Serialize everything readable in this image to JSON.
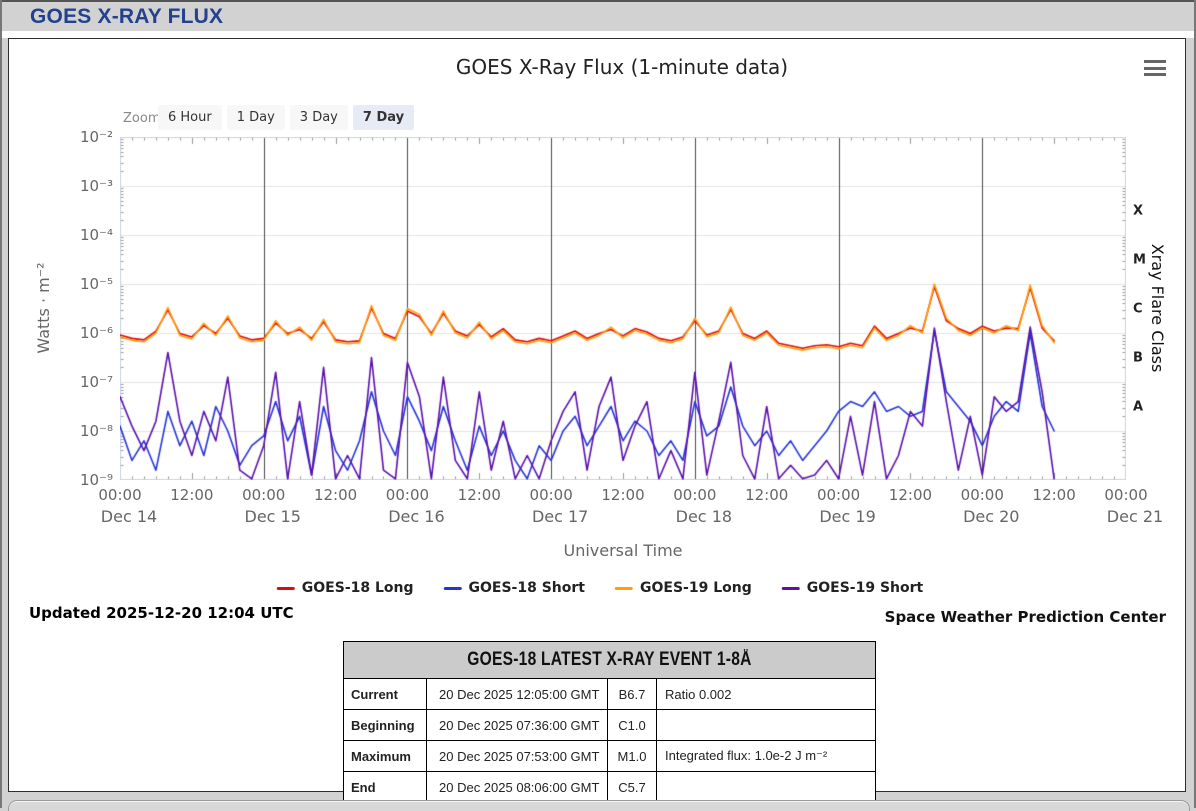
{
  "page": {
    "header_title": "GOES X-RAY FLUX"
  },
  "chart": {
    "zoom_label": "Zoom",
    "zoom_buttons": [
      {
        "label": "6 Hour",
        "selected": false
      },
      {
        "label": "1 Day",
        "selected": false
      },
      {
        "label": "3 Day",
        "selected": false
      },
      {
        "label": "7 Day",
        "selected": true
      }
    ],
    "menu_icon": "hamburger-icon"
  },
  "chart_data": {
    "type": "line",
    "title": "GOES X-Ray Flux (1-minute data)",
    "xlabel": "Universal Time",
    "ylabel": "Watts · m⁻²",
    "y2label": "Xray Flare Class",
    "yscale": "log",
    "ylim_log10": [
      -9,
      -2
    ],
    "y_tick_labels": [
      "10⁻²",
      "10⁻³",
      "10⁻⁴",
      "10⁻⁵",
      "10⁻⁶",
      "10⁻⁷",
      "10⁻⁸",
      "10⁻⁹"
    ],
    "x_days": [
      "Dec 14",
      "Dec 15",
      "Dec 16",
      "Dec 17",
      "Dec 18",
      "Dec 19",
      "Dec 20",
      "Dec 21"
    ],
    "x_time_major": "00:00",
    "x_time_minor": "12:00",
    "flare_classes": [
      "A",
      "B",
      "C",
      "M",
      "X"
    ],
    "flare_class_band_mid_log10": [
      -7.5,
      -6.5,
      -5.5,
      -4.5,
      -3.5
    ],
    "grid": {
      "h_gridlines": "decades",
      "day_boundary_lines": true
    },
    "colors": {
      "day_line": "#4a4a4a",
      "gridline": "#e4e4e4",
      "plot_border": "#ccd6eb",
      "tick": "#999999"
    },
    "x_start": "Dec 14 00:00 UTC",
    "x_step_hours": 2,
    "series": [
      {
        "name": "GOES-18 Long",
        "color": "#dd0b0b",
        "log10_values": [
          -6.04,
          -6.11,
          -6.14,
          -5.96,
          -5.53,
          -6.01,
          -6.08,
          -5.85,
          -6.01,
          -5.7,
          -6.06,
          -6.14,
          -6.11,
          -5.8,
          -6.01,
          -5.93,
          -6.11,
          -5.77,
          -6.14,
          -6.18,
          -6.16,
          -5.49,
          -6.01,
          -6.11,
          -5.55,
          -5.67,
          -6.01,
          -5.6,
          -5.96,
          -6.06,
          -5.83,
          -6.08,
          -5.91,
          -6.14,
          -6.18,
          -6.11,
          -6.16,
          -6.06,
          -5.96,
          -6.11,
          -6.01,
          -5.93,
          -6.06,
          -5.91,
          -5.98,
          -6.11,
          -6.16,
          -6.08,
          -5.75,
          -6.04,
          -5.96,
          -5.52,
          -6.01,
          -6.11,
          -5.96,
          -6.21,
          -6.26,
          -6.31,
          -6.26,
          -6.24,
          -6.28,
          -6.21,
          -6.26,
          -5.86,
          -6.11,
          -6.01,
          -5.9,
          -5.96,
          -5.05,
          -5.75,
          -5.91,
          -6.01,
          -5.86,
          -5.96,
          -5.9,
          -5.91,
          -5.07,
          -5.9,
          -6.16
        ]
      },
      {
        "name": "GOES-18 Short",
        "color": "#2535d8",
        "log10_values": [
          -7.9,
          -8.6,
          -8.2,
          -8.8,
          -7.6,
          -8.3,
          -7.8,
          -8.5,
          -7.5,
          -8.0,
          -8.7,
          -8.3,
          -8.1,
          -7.4,
          -8.2,
          -7.7,
          -8.9,
          -7.5,
          -8.4,
          -8.8,
          -8.2,
          -7.2,
          -8.0,
          -8.5,
          -7.3,
          -7.8,
          -8.4,
          -7.5,
          -8.2,
          -8.8,
          -7.9,
          -8.5,
          -8.0,
          -8.6,
          -9.0,
          -8.3,
          -8.6,
          -8.0,
          -7.7,
          -8.3,
          -7.9,
          -7.5,
          -8.2,
          -7.8,
          -8.0,
          -8.5,
          -8.2,
          -8.6,
          -7.4,
          -8.1,
          -7.9,
          -7.1,
          -7.9,
          -8.3,
          -8.0,
          -8.5,
          -8.2,
          -8.6,
          -8.3,
          -8.0,
          -7.6,
          -7.4,
          -7.5,
          -7.2,
          -7.6,
          -7.5,
          -7.7,
          -7.6,
          -5.95,
          -7.2,
          -7.5,
          -7.8,
          -8.3,
          -7.7,
          -7.4,
          -7.6,
          -6.0,
          -7.5,
          -8.0
        ]
      },
      {
        "name": "GOES-19 Long",
        "color": "#ff9e0a",
        "log10_values": [
          -6.08,
          -6.15,
          -6.18,
          -6.0,
          -5.48,
          -6.05,
          -6.12,
          -5.8,
          -6.05,
          -5.65,
          -6.1,
          -6.18,
          -6.15,
          -5.75,
          -6.05,
          -5.88,
          -6.15,
          -5.72,
          -6.18,
          -6.22,
          -6.2,
          -5.44,
          -6.05,
          -6.15,
          -5.5,
          -5.62,
          -6.05,
          -5.55,
          -6.0,
          -6.1,
          -5.78,
          -6.12,
          -5.95,
          -6.18,
          -6.22,
          -6.15,
          -6.2,
          -6.1,
          -6.0,
          -6.15,
          -6.05,
          -5.88,
          -6.1,
          -5.95,
          -6.02,
          -6.15,
          -6.2,
          -6.12,
          -5.7,
          -6.08,
          -6.0,
          -5.47,
          -6.05,
          -6.15,
          -6.0,
          -6.25,
          -6.3,
          -6.35,
          -6.3,
          -6.28,
          -6.32,
          -6.25,
          -6.3,
          -5.9,
          -6.15,
          -6.05,
          -5.85,
          -6.0,
          -5.0,
          -5.7,
          -5.95,
          -6.05,
          -5.9,
          -6.0,
          -5.85,
          -5.95,
          -5.02,
          -5.85,
          -6.2
        ]
      },
      {
        "name": "GOES-19 Short",
        "color": "#5a11ad",
        "log10_values": [
          -7.3,
          -7.9,
          -8.4,
          -7.8,
          -6.4,
          -7.8,
          -8.5,
          -7.6,
          -8.2,
          -6.9,
          -8.8,
          -9.0,
          -8.3,
          -6.8,
          -9.0,
          -7.4,
          -8.9,
          -6.7,
          -9.0,
          -8.5,
          -9.0,
          -6.5,
          -8.8,
          -9.0,
          -6.6,
          -7.3,
          -9.0,
          -6.9,
          -8.6,
          -9.0,
          -7.2,
          -8.8,
          -7.8,
          -9.0,
          -8.5,
          -9.0,
          -8.2,
          -7.6,
          -7.2,
          -8.8,
          -7.5,
          -6.9,
          -8.6,
          -7.9,
          -7.4,
          -9.0,
          -8.4,
          -9.0,
          -6.8,
          -8.9,
          -7.8,
          -6.6,
          -8.5,
          -9.0,
          -7.5,
          -9.0,
          -8.7,
          -9.0,
          -8.9,
          -8.6,
          -9.0,
          -7.7,
          -8.9,
          -7.4,
          -9.0,
          -8.5,
          -7.6,
          -7.9,
          -5.9,
          -7.4,
          -8.8,
          -7.7,
          -8.9,
          -7.3,
          -7.6,
          -7.4,
          -5.88,
          -7.2,
          -9.0
        ]
      }
    ],
    "draw_order": [
      1,
      3,
      0,
      2
    ],
    "legend_position": "bottom-center"
  },
  "legend": {
    "items": [
      {
        "label": "GOES-18 Long",
        "color": "#dd0b0b"
      },
      {
        "label": "GOES-18 Short",
        "color": "#2535d8"
      },
      {
        "label": "GOES-19 Long",
        "color": "#ff9e0a"
      },
      {
        "label": "GOES-19 Short",
        "color": "#5a11ad"
      }
    ]
  },
  "footer": {
    "updated": "Updated 2025-12-20 12:04 UTC",
    "credit": "Space Weather Prediction Center"
  },
  "event_table": {
    "title": "GOES-18 LATEST X-RAY EVENT 1-8Å",
    "rows": [
      {
        "label": "Current",
        "time": "20 Dec 2025 12:05:00 GMT",
        "cls": "B6.7",
        "note": "Ratio 0.002"
      },
      {
        "label": "Beginning",
        "time": "20 Dec 2025 07:36:00 GMT",
        "cls": "C1.0",
        "note": ""
      },
      {
        "label": "Maximum",
        "time": "20 Dec 2025 07:53:00 GMT",
        "cls": "M1.0",
        "note": "Integrated flux: 1.0e-2 J m⁻²"
      },
      {
        "label": "End",
        "time": "20 Dec 2025 08:06:00 GMT",
        "cls": "C5.7",
        "note": ""
      }
    ]
  }
}
